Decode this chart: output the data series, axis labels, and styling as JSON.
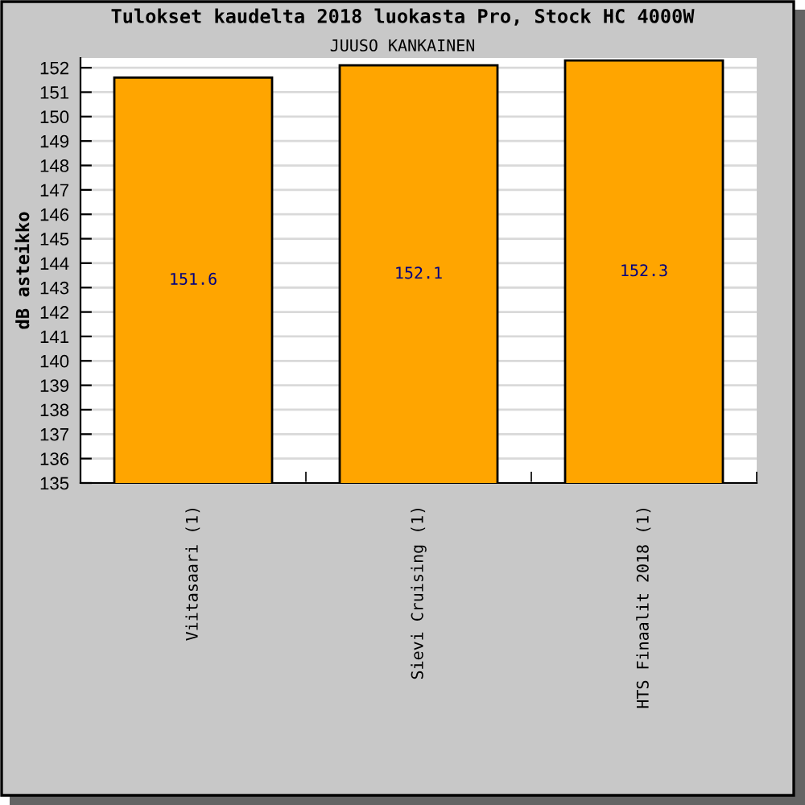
{
  "chart_data": {
    "type": "bar",
    "title": "Tulokset kaudelta 2018 luokasta Pro, Stock HC 4000W",
    "subtitle": "JUUSO KANKAINEN",
    "ylabel": "dB asteikko",
    "categories": [
      "Viitasaari (1)",
      "Sievi Cruising (1)",
      "HTS Finaalit 2018 (1)"
    ],
    "values": [
      151.6,
      152.1,
      152.3
    ],
    "color": "#ffa500",
    "ylim": [
      135,
      152.4
    ],
    "yticks": [
      135,
      136,
      137,
      138,
      139,
      140,
      141,
      142,
      143,
      144,
      145,
      146,
      147,
      148,
      149,
      150,
      151,
      152
    ],
    "grid": "y",
    "data_labels": true
  }
}
